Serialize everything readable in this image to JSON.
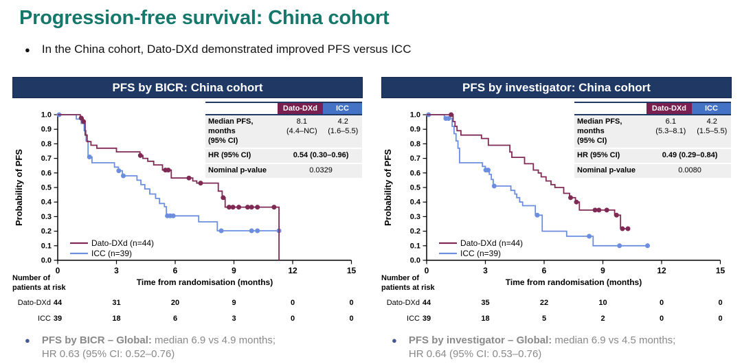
{
  "page": {
    "title": "Progression-free survival: China cohort",
    "bullet": "In the China cohort, Dato-DXd demonstrated improved PFS versus ICC"
  },
  "colors": {
    "teal": "#15786b",
    "navy": "#1f3864",
    "dato": "#7e2a54",
    "icc": "#6d8ede",
    "dato_header_bg": "#7a2050",
    "icc_header_bg": "#4472c4",
    "row_bg": "#efefef",
    "footnote_gray": "#898989"
  },
  "risk_header_line1": "Number of",
  "risk_header_line2": "patients at risk",
  "panels": [
    {
      "header": "PFS by BICR: China cohort",
      "stats": {
        "col_dato": "Dato-DXd",
        "col_icc": "ICC",
        "median_label_line1": "Median PFS, months",
        "median_label_line2": "(95% CI)",
        "dato_median": "8.1",
        "dato_ci": "(4.4–NC)",
        "icc_median": "4.2",
        "icc_ci": "(1.6–5.5)",
        "hr_label": "HR (95% CI)",
        "hr_value": "0.54 (0.30–0.96)",
        "p_label": "Nominal p-value",
        "p_value": "0.0329"
      },
      "risk": {
        "rows": [
          {
            "label": "Dato-DXd",
            "values": [
              "44",
              "31",
              "20",
              "9",
              "0",
              "0"
            ]
          },
          {
            "label": "ICC",
            "values": [
              "39",
              "18",
              "6",
              "3",
              "0",
              "0"
            ]
          }
        ]
      },
      "footnote": {
        "bold": "PFS by BICR – Global:",
        "rest": " median 6.9 vs 4.9 months;",
        "line2": "HR 0.63 (95% CI: 0.52–0.76)"
      }
    },
    {
      "header": "PFS by investigator: China cohort",
      "stats": {
        "col_dato": "Dato-DXd",
        "col_icc": "ICC",
        "median_label_line1": "Median PFS, months",
        "median_label_line2": "(95% CI)",
        "dato_median": "6.1",
        "dato_ci": "(5.3–8.1)",
        "icc_median": "4.2",
        "icc_ci": "(1.5–5.5)",
        "hr_label": "HR (95% CI)",
        "hr_value": "0.49 (0.29–0.84)",
        "p_label": "Nominal p-value",
        "p_value": "0.0080"
      },
      "risk": {
        "rows": [
          {
            "label": "Dato-DXd",
            "values": [
              "44",
              "35",
              "22",
              "10",
              "0",
              "0"
            ]
          },
          {
            "label": "ICC",
            "values": [
              "39",
              "18",
              "5",
              "2",
              "0",
              "0"
            ]
          }
        ]
      },
      "footnote": {
        "bold": "PFS by investigator – Global:",
        "rest": " median 6.9 vs 4.5 months;",
        "line2": "HR 0.64 (95% CI: 0.53–0.76)"
      }
    }
  ],
  "chart_data": [
    {
      "type": "line",
      "subtype": "kaplan_meier",
      "title": "PFS by BICR: China cohort",
      "xlabel": "Time from randomisation (months)",
      "ylabel": "Probability of PFS",
      "xlim": [
        0,
        15
      ],
      "ylim": [
        0,
        1
      ],
      "xticks": [
        0,
        3,
        6,
        9,
        12,
        15
      ],
      "ytick_step": 0.1,
      "grid": false,
      "legend_position": "lower-left",
      "series": [
        {
          "name": "Dato-DXd (n=44)",
          "color": "#7e2a54",
          "steps": [
            [
              0,
              1.0
            ],
            [
              1.15,
              0.977
            ],
            [
              1.3,
              0.953
            ],
            [
              1.4,
              0.86
            ],
            [
              1.5,
              0.815
            ],
            [
              1.7,
              0.79
            ],
            [
              2.0,
              0.77
            ],
            [
              3.0,
              0.745
            ],
            [
              4.2,
              0.72
            ],
            [
              4.35,
              0.7
            ],
            [
              4.6,
              0.68
            ],
            [
              4.9,
              0.655
            ],
            [
              5.35,
              0.62
            ],
            [
              5.8,
              0.565
            ],
            [
              6.9,
              0.545
            ],
            [
              7.1,
              0.53
            ],
            [
              8.2,
              0.475
            ],
            [
              8.4,
              0.43
            ],
            [
              8.55,
              0.365
            ],
            [
              11.3,
              0.0
            ]
          ],
          "censors": [
            [
              1.2,
              0.977
            ],
            [
              1.32,
              0.953
            ],
            [
              4.22,
              0.72
            ],
            [
              5.5,
              0.62
            ],
            [
              5.65,
              0.62
            ],
            [
              6.7,
              0.565
            ],
            [
              7.3,
              0.53
            ],
            [
              8.45,
              0.43
            ],
            [
              8.75,
              0.365
            ],
            [
              8.95,
              0.365
            ],
            [
              9.25,
              0.365
            ],
            [
              9.7,
              0.365
            ],
            [
              9.9,
              0.365
            ],
            [
              10.2,
              0.365
            ],
            [
              11.05,
              0.365
            ]
          ]
        },
        {
          "name": "ICC (n=39)",
          "color": "#6d8ede",
          "steps": [
            [
              0,
              1.0
            ],
            [
              0.95,
              0.97
            ],
            [
              1.2,
              0.94
            ],
            [
              1.35,
              0.89
            ],
            [
              1.45,
              0.82
            ],
            [
              1.55,
              0.71
            ],
            [
              1.75,
              0.67
            ],
            [
              2.9,
              0.64
            ],
            [
              3.1,
              0.615
            ],
            [
              3.3,
              0.58
            ],
            [
              4.05,
              0.55
            ],
            [
              4.25,
              0.52
            ],
            [
              4.45,
              0.49
            ],
            [
              4.7,
              0.455
            ],
            [
              5.0,
              0.425
            ],
            [
              5.2,
              0.39
            ],
            [
              5.45,
              0.368
            ],
            [
              5.55,
              0.305
            ],
            [
              7.2,
              0.264
            ],
            [
              8.15,
              0.203
            ],
            [
              11.35,
              0.203
            ]
          ],
          "censors": [
            [
              0.07,
              1.0
            ],
            [
              1.62,
              0.71
            ],
            [
              3.12,
              0.615
            ],
            [
              3.35,
              0.58
            ],
            [
              5.6,
              0.305
            ],
            [
              5.75,
              0.305
            ],
            [
              5.9,
              0.305
            ],
            [
              8.35,
              0.203
            ],
            [
              9.9,
              0.203
            ],
            [
              10.2,
              0.203
            ],
            [
              11.3,
              0.203
            ]
          ]
        }
      ]
    },
    {
      "type": "line",
      "subtype": "kaplan_meier",
      "title": "PFS by investigator: China cohort",
      "xlabel": "Time from randomisation (months)",
      "ylabel": "Probability of PFS",
      "xlim": [
        0,
        15
      ],
      "ylim": [
        0,
        1
      ],
      "xticks": [
        0,
        3,
        6,
        9,
        12,
        15
      ],
      "ytick_step": 0.1,
      "grid": false,
      "legend_position": "lower-left",
      "series": [
        {
          "name": "Dato-DXd (n=44)",
          "color": "#7e2a54",
          "steps": [
            [
              0,
              1.0
            ],
            [
              1.35,
              0.953
            ],
            [
              1.45,
              0.92
            ],
            [
              1.55,
              0.89
            ],
            [
              1.75,
              0.86
            ],
            [
              2.8,
              0.837
            ],
            [
              3.15,
              0.79
            ],
            [
              4.25,
              0.744
            ],
            [
              4.35,
              0.707
            ],
            [
              5.0,
              0.663
            ],
            [
              5.45,
              0.62
            ],
            [
              5.7,
              0.6
            ],
            [
              5.85,
              0.573
            ],
            [
              6.1,
              0.545
            ],
            [
              6.35,
              0.52
            ],
            [
              6.55,
              0.5
            ],
            [
              7.0,
              0.46
            ],
            [
              7.3,
              0.43
            ],
            [
              7.6,
              0.4
            ],
            [
              7.8,
              0.345
            ],
            [
              9.6,
              0.31
            ],
            [
              9.9,
              0.217
            ],
            [
              10.35,
              0.217
            ]
          ],
          "censors": [
            [
              1.25,
              1.0
            ],
            [
              7.35,
              0.43
            ],
            [
              7.65,
              0.4
            ],
            [
              8.6,
              0.345
            ],
            [
              8.8,
              0.345
            ],
            [
              9.2,
              0.345
            ],
            [
              9.7,
              0.31
            ],
            [
              10.0,
              0.217
            ],
            [
              10.28,
              0.217
            ]
          ]
        },
        {
          "name": "ICC (n=39)",
          "color": "#6d8ede",
          "steps": [
            [
              0,
              1.0
            ],
            [
              0.9,
              0.974
            ],
            [
              1.3,
              0.92
            ],
            [
              1.4,
              0.87
            ],
            [
              1.5,
              0.82
            ],
            [
              1.6,
              0.77
            ],
            [
              1.68,
              0.67
            ],
            [
              2.85,
              0.645
            ],
            [
              3.0,
              0.62
            ],
            [
              3.2,
              0.59
            ],
            [
              3.3,
              0.555
            ],
            [
              3.4,
              0.51
            ],
            [
              4.3,
              0.48
            ],
            [
              4.5,
              0.455
            ],
            [
              4.6,
              0.43
            ],
            [
              4.75,
              0.4
            ],
            [
              4.9,
              0.375
            ],
            [
              5.55,
              0.31
            ],
            [
              5.9,
              0.2
            ],
            [
              7.15,
              0.165
            ],
            [
              8.5,
              0.1
            ],
            [
              11.3,
              0.1
            ]
          ],
          "censors": [
            [
              0.1,
              1.0
            ],
            [
              0.98,
              0.974
            ],
            [
              1.12,
              0.974
            ],
            [
              3.02,
              0.62
            ],
            [
              3.14,
              0.62
            ],
            [
              3.45,
              0.51
            ],
            [
              5.65,
              0.31
            ],
            [
              8.3,
              0.165
            ],
            [
              9.85,
              0.1
            ],
            [
              11.28,
              0.1
            ]
          ]
        }
      ]
    }
  ]
}
